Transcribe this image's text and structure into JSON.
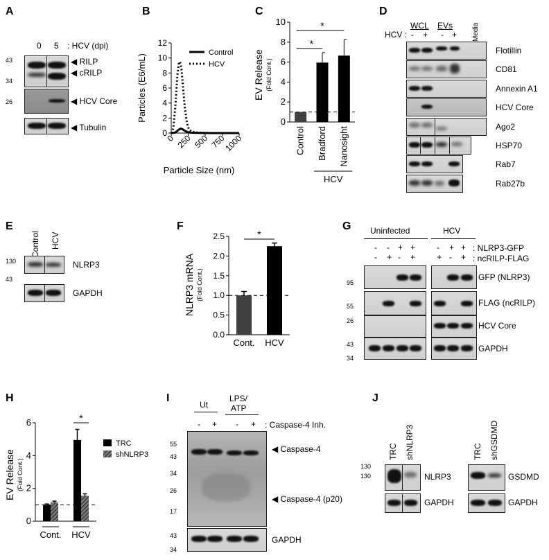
{
  "panels": {
    "A": {
      "letter": "A",
      "lanes": [
        "0",
        "5"
      ],
      "lanes_caption": ": HCV (dpi)",
      "mw": [
        "43",
        "34",
        "26"
      ],
      "labels": [
        "RILP",
        "cRILP",
        "HCV Core",
        "Tubulin"
      ]
    },
    "B": {
      "letter": "B"
    },
    "C": {
      "letter": "C",
      "star": "*",
      "hcv": "HCV"
    },
    "D": {
      "letter": "D",
      "groups": [
        "WCL",
        "EVs",
        "Media"
      ],
      "hcv_row": "HCV :",
      "signs": [
        "-",
        "+",
        "-",
        "+"
      ],
      "labels": [
        "Flotillin",
        "CD81",
        "Annexin A1",
        "HCV Core",
        "Ago2",
        "HSP70",
        "Rab7",
        "Rab27b"
      ]
    },
    "E": {
      "letter": "E",
      "lanes": [
        "Control",
        "HCV"
      ],
      "mw": [
        "130",
        "43"
      ],
      "labels": [
        "NLRP3",
        "GAPDH"
      ]
    },
    "F": {
      "letter": "F",
      "star": "*"
    },
    "G": {
      "letter": "G",
      "groups": [
        "Uninfected",
        "HCV"
      ],
      "row1_signs": [
        "-",
        "-",
        "+",
        "+",
        "-",
        "+",
        "+"
      ],
      "row2_signs": [
        "-",
        "+",
        "-",
        "+",
        "+",
        "-",
        "+"
      ],
      "row1_label": ": NLRP3-GFP",
      "row2_label": ": ncRILP-FLAG",
      "mw": [
        "95",
        "55",
        "26",
        "43",
        "34"
      ],
      "labels": [
        "GFP (NLRP3)",
        "FLAG (ncRILP)",
        "HCV Core",
        "GAPDH"
      ]
    },
    "H": {
      "letter": "H",
      "star": "*"
    },
    "I": {
      "letter": "I",
      "groups": [
        "Ut",
        "LPS/",
        "ATP"
      ],
      "signs": [
        "-",
        "+",
        "-",
        "+"
      ],
      "inh_label": ": Caspase-4 Inh.",
      "mw": [
        "55",
        "43",
        "34",
        "26",
        "17",
        "43",
        "34"
      ],
      "labels": [
        "Caspase-4",
        "Caspase-4 (p20)",
        "GAPDH"
      ]
    },
    "J": {
      "letter": "J",
      "lanes_left": [
        "TRC",
        "shNLRP3"
      ],
      "lanes_right": [
        "TRC",
        "shGSDMD"
      ],
      "mw": [
        "130",
        "130"
      ],
      "labels": [
        "NLRP3",
        "GAPDH",
        "GSDMD",
        "GAPDH"
      ]
    }
  },
  "chart_data": [
    {
      "panel": "B",
      "type": "line",
      "title": "",
      "xlabel": "Particle Size (nm)",
      "ylabel": "Particles (E6/mL)",
      "xlim": [
        0,
        1000
      ],
      "ylim": [
        0,
        12
      ],
      "xticks": [
        "0",
        "250",
        "500",
        "750",
        "1000"
      ],
      "yticks": [
        "0",
        "2",
        "4",
        "6",
        "8",
        "10",
        "12"
      ],
      "legend_position": "top-right",
      "series": [
        {
          "name": "Control",
          "style": "solid",
          "x": [
            0,
            50,
            80,
            110,
            140,
            170,
            200,
            250,
            300,
            400,
            600,
            800,
            1000
          ],
          "y": [
            0,
            0.05,
            0.2,
            0.45,
            0.6,
            0.5,
            0.3,
            0.1,
            0.05,
            0.02,
            0,
            0,
            0
          ]
        },
        {
          "name": "HCV",
          "style": "dotted",
          "x": [
            0,
            30,
            60,
            90,
            110,
            130,
            150,
            170,
            200,
            230,
            260,
            300,
            400,
            600,
            800,
            1000
          ],
          "y": [
            0,
            0.6,
            3.5,
            7.6,
            9.2,
            9.5,
            8.6,
            6.5,
            3.4,
            1.4,
            0.5,
            0.2,
            0.05,
            0,
            0,
            0
          ]
        }
      ]
    },
    {
      "panel": "C",
      "type": "bar",
      "title": "",
      "ylabel": "EV Release",
      "ylabel_sub": "(Fold Cont.)",
      "categories": [
        "Control",
        "Bradford",
        "Nanosight"
      ],
      "values": [
        1.0,
        5.95,
        6.65
      ],
      "errors": [
        0,
        1.0,
        1.6
      ],
      "colors": [
        "#404040",
        "#000000",
        "#000000"
      ],
      "ylim": [
        0,
        10
      ],
      "yticks": [
        "0",
        "2",
        "4",
        "6",
        "8",
        "10"
      ],
      "reference_line": 1.0,
      "group_label": "HCV"
    },
    {
      "panel": "F",
      "type": "bar",
      "title": "",
      "ylabel": "NLRP3 mRNA",
      "ylabel_sub": "(Fold Cont.)",
      "categories": [
        "Cont.",
        "HCV"
      ],
      "values": [
        1.0,
        2.25
      ],
      "errors": [
        0.1,
        0.08
      ],
      "colors": [
        "#404040",
        "#000000"
      ],
      "ylim": [
        0,
        2.5
      ],
      "yticks": [
        "0.0",
        "0.5",
        "1.0",
        "1.5",
        "2.0",
        "2.5"
      ],
      "reference_line": 1.0
    },
    {
      "panel": "H",
      "type": "bar",
      "title": "",
      "ylabel": "EV Release",
      "ylabel_sub": "(Fold Cont.)",
      "categories": [
        "Cont.",
        "HCV"
      ],
      "series": [
        {
          "name": "TRC",
          "values": [
            1.0,
            4.95
          ],
          "errors": [
            0.05,
            0.65
          ],
          "color": "#000000"
        },
        {
          "name": "shNLRP3",
          "values": [
            1.15,
            1.55
          ],
          "errors": [
            0.07,
            0.12
          ],
          "color": "hatch"
        }
      ],
      "ylim": [
        0,
        6
      ],
      "yticks": [
        "0",
        "2",
        "4",
        "6"
      ],
      "reference_line": 1.0,
      "legend_position": "right"
    }
  ]
}
